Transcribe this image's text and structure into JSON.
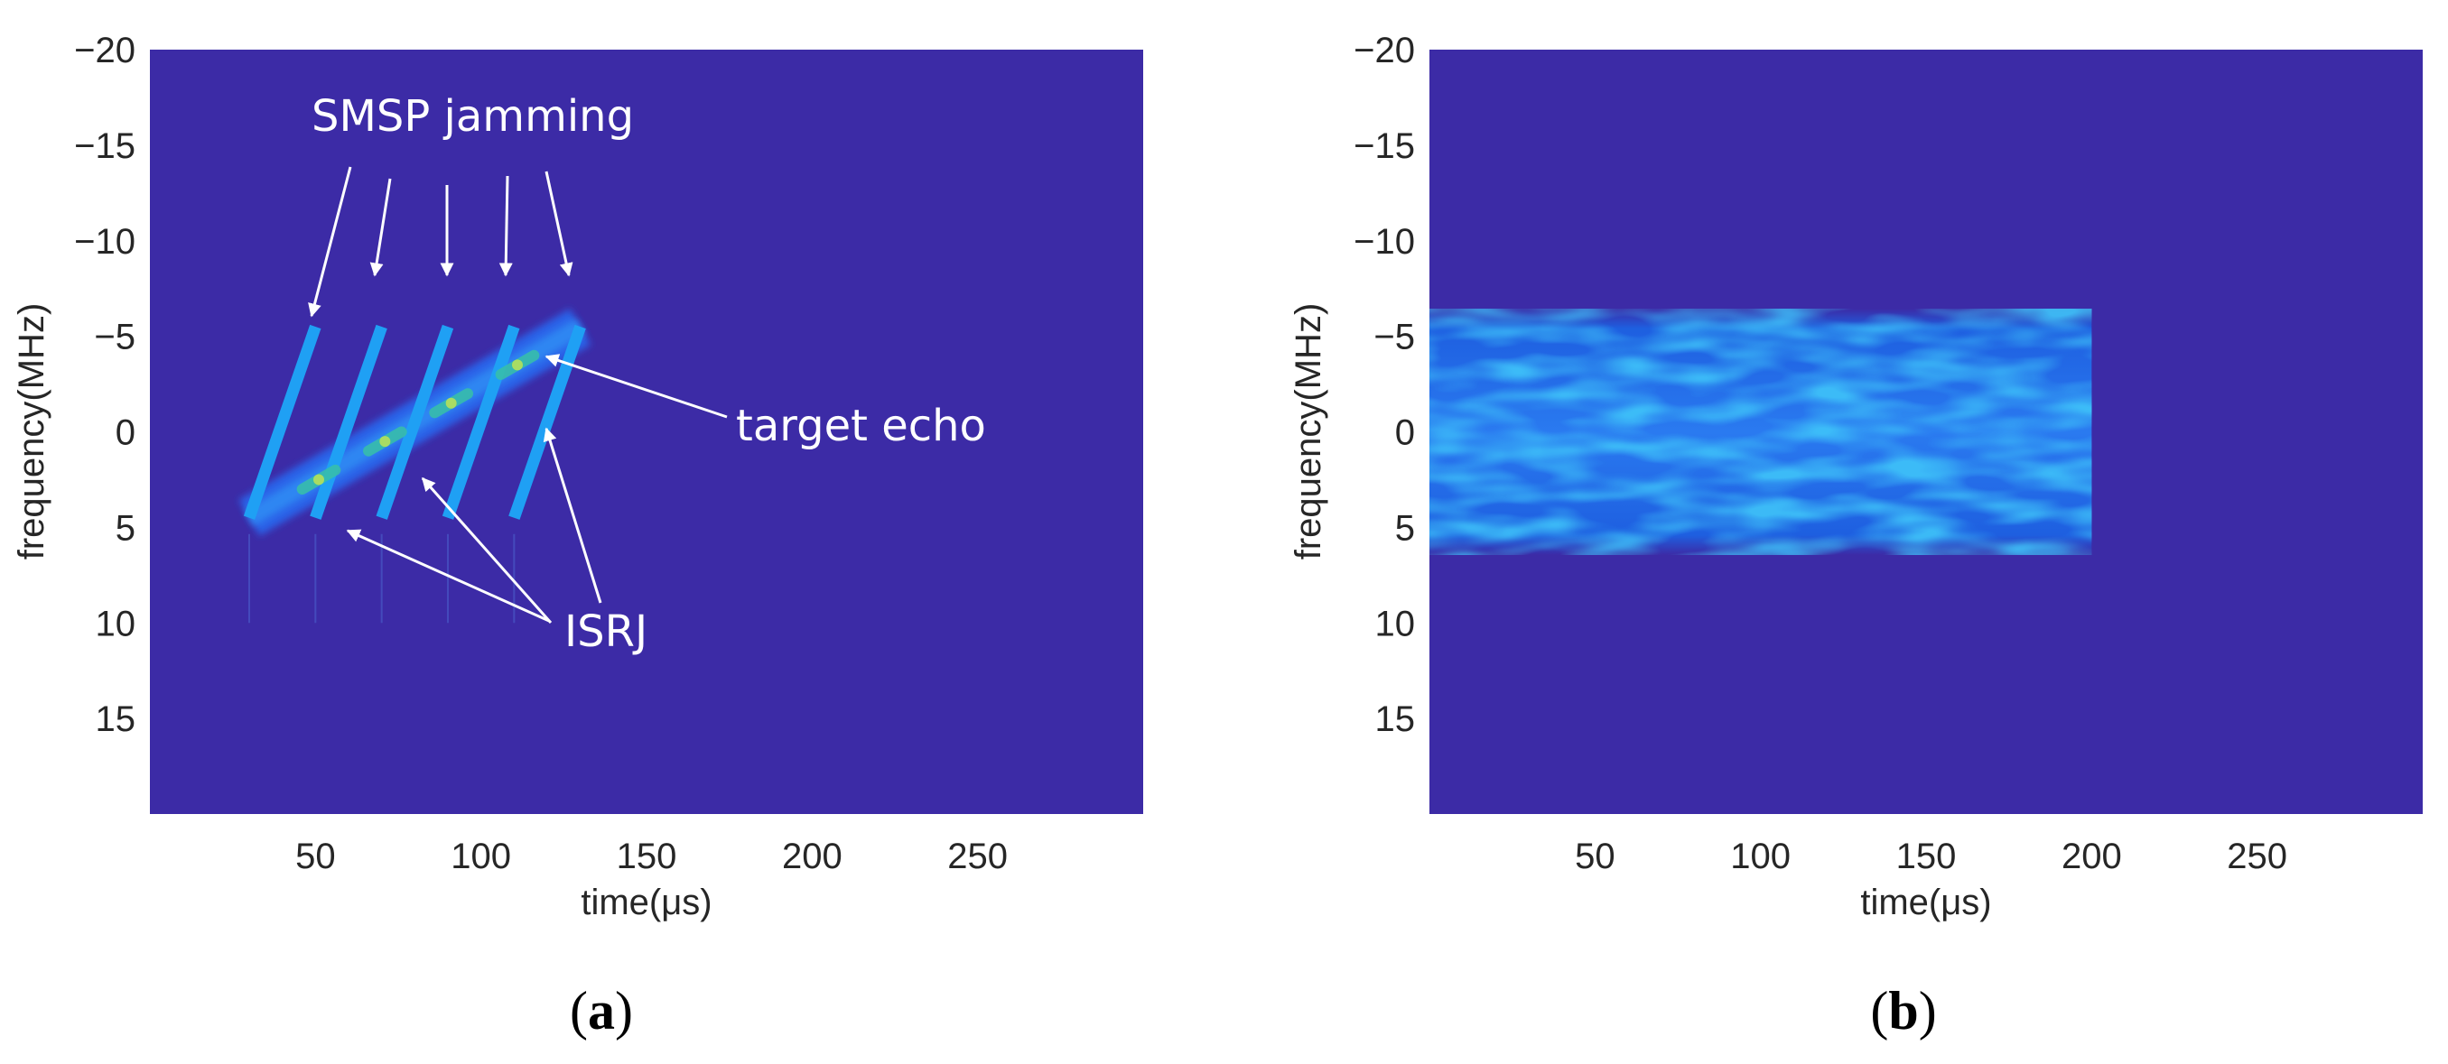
{
  "chart_data": [
    {
      "type": "heatmap",
      "panel_label": "a",
      "xlabel": "time(μs)",
      "ylabel": "frequency(MHz)",
      "xlim": [
        0,
        300
      ],
      "ylim": [
        -20,
        20
      ],
      "y_reversed": true,
      "xticks": [
        50,
        100,
        150,
        200,
        250
      ],
      "yticks": [
        -20,
        -15,
        -10,
        -5,
        0,
        5,
        10,
        15
      ],
      "background_color": "#3c2ba6",
      "annotations": [
        {
          "text": "SMSP jamming"
        },
        {
          "text": "target echo"
        },
        {
          "text": "ISRJ"
        }
      ],
      "target_echo": {
        "t_start": 30,
        "t_end": 130,
        "f_start": 4.5,
        "f_end": -5.5
      },
      "smsp_segments": [
        {
          "t_start": 30,
          "t_end": 50,
          "f_start": 4.5,
          "f_end": -5.5
        },
        {
          "t_start": 50,
          "t_end": 70,
          "f_start": 4.5,
          "f_end": -5.5
        },
        {
          "t_start": 70,
          "t_end": 90,
          "f_start": 4.5,
          "f_end": -5.5
        },
        {
          "t_start": 90,
          "t_end": 110,
          "f_start": 4.5,
          "f_end": -5.5
        },
        {
          "t_start": 110,
          "t_end": 130,
          "f_start": 4.5,
          "f_end": -5.5
        }
      ],
      "isrj_segments": [
        {
          "t_start": 46,
          "t_end": 56,
          "f_start": 3.0,
          "f_end": 2.0
        },
        {
          "t_start": 66,
          "t_end": 76,
          "f_start": 1.0,
          "f_end": 0.0
        },
        {
          "t_start": 86,
          "t_end": 96,
          "f_start": -1.0,
          "f_end": -2.0
        },
        {
          "t_start": 106,
          "t_end": 116,
          "f_start": -3.0,
          "f_end": -4.0
        }
      ]
    },
    {
      "type": "heatmap",
      "panel_label": "b",
      "xlabel": "time(μs)",
      "ylabel": "frequency(MHz)",
      "xlim": [
        0,
        300
      ],
      "ylim": [
        -20,
        20
      ],
      "y_reversed": true,
      "xticks": [
        50,
        100,
        150,
        200,
        250
      ],
      "yticks": [
        -20,
        -15,
        -10,
        -5,
        0,
        5,
        10,
        15
      ],
      "background_color": "#3c2ba6",
      "noise_band": {
        "t_start": 0,
        "t_end": 200,
        "f_start": -5.5,
        "f_end": 5.5
      }
    }
  ]
}
